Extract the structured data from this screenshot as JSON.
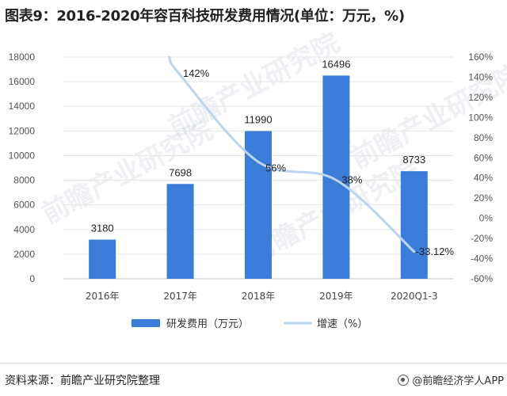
{
  "title": "图表9：2016-2020年容百科技研发费用情况(单位：万元，%)",
  "source": "资料来源：前瞻产业研究院整理",
  "brand": "@前瞻经济学人APP",
  "watermark": "前瞻产业研究院",
  "colors": {
    "bar": "#3b7dd8",
    "line": "#bcd4ee",
    "grid": "#e6e6e6",
    "axis": "#bfbfbf"
  },
  "chart_data": {
    "type": "bar",
    "categories": [
      "2016年",
      "2017年",
      "2018年",
      "2019年",
      "2020Q1-3"
    ],
    "series": [
      {
        "name": "研发费用（万元）",
        "type": "bar",
        "axis": "left",
        "values": [
          3180,
          7698,
          11990,
          16496,
          8733
        ],
        "labels": [
          "3180",
          "7698",
          "11990",
          "16496",
          "8733"
        ]
      },
      {
        "name": "增速（%）",
        "type": "line",
        "axis": "right",
        "values": [
          null,
          142,
          56,
          38,
          -33.12
        ],
        "labels": [
          "",
          "142%",
          "56%",
          "38%",
          "-33.12%"
        ]
      }
    ],
    "y_left": {
      "min": 0,
      "max": 18000,
      "step": 2000,
      "ticks": [
        "0",
        "2000",
        "4000",
        "6000",
        "8000",
        "10000",
        "12000",
        "14000",
        "16000",
        "18000"
      ]
    },
    "y_right": {
      "min": -60,
      "max": 160,
      "step": 20,
      "ticks": [
        "-60%",
        "-40%",
        "-20%",
        "0%",
        "20%",
        "40%",
        "60%",
        "80%",
        "100%",
        "120%",
        "140%",
        "160%"
      ]
    },
    "grid": true,
    "legend": "bottom"
  }
}
